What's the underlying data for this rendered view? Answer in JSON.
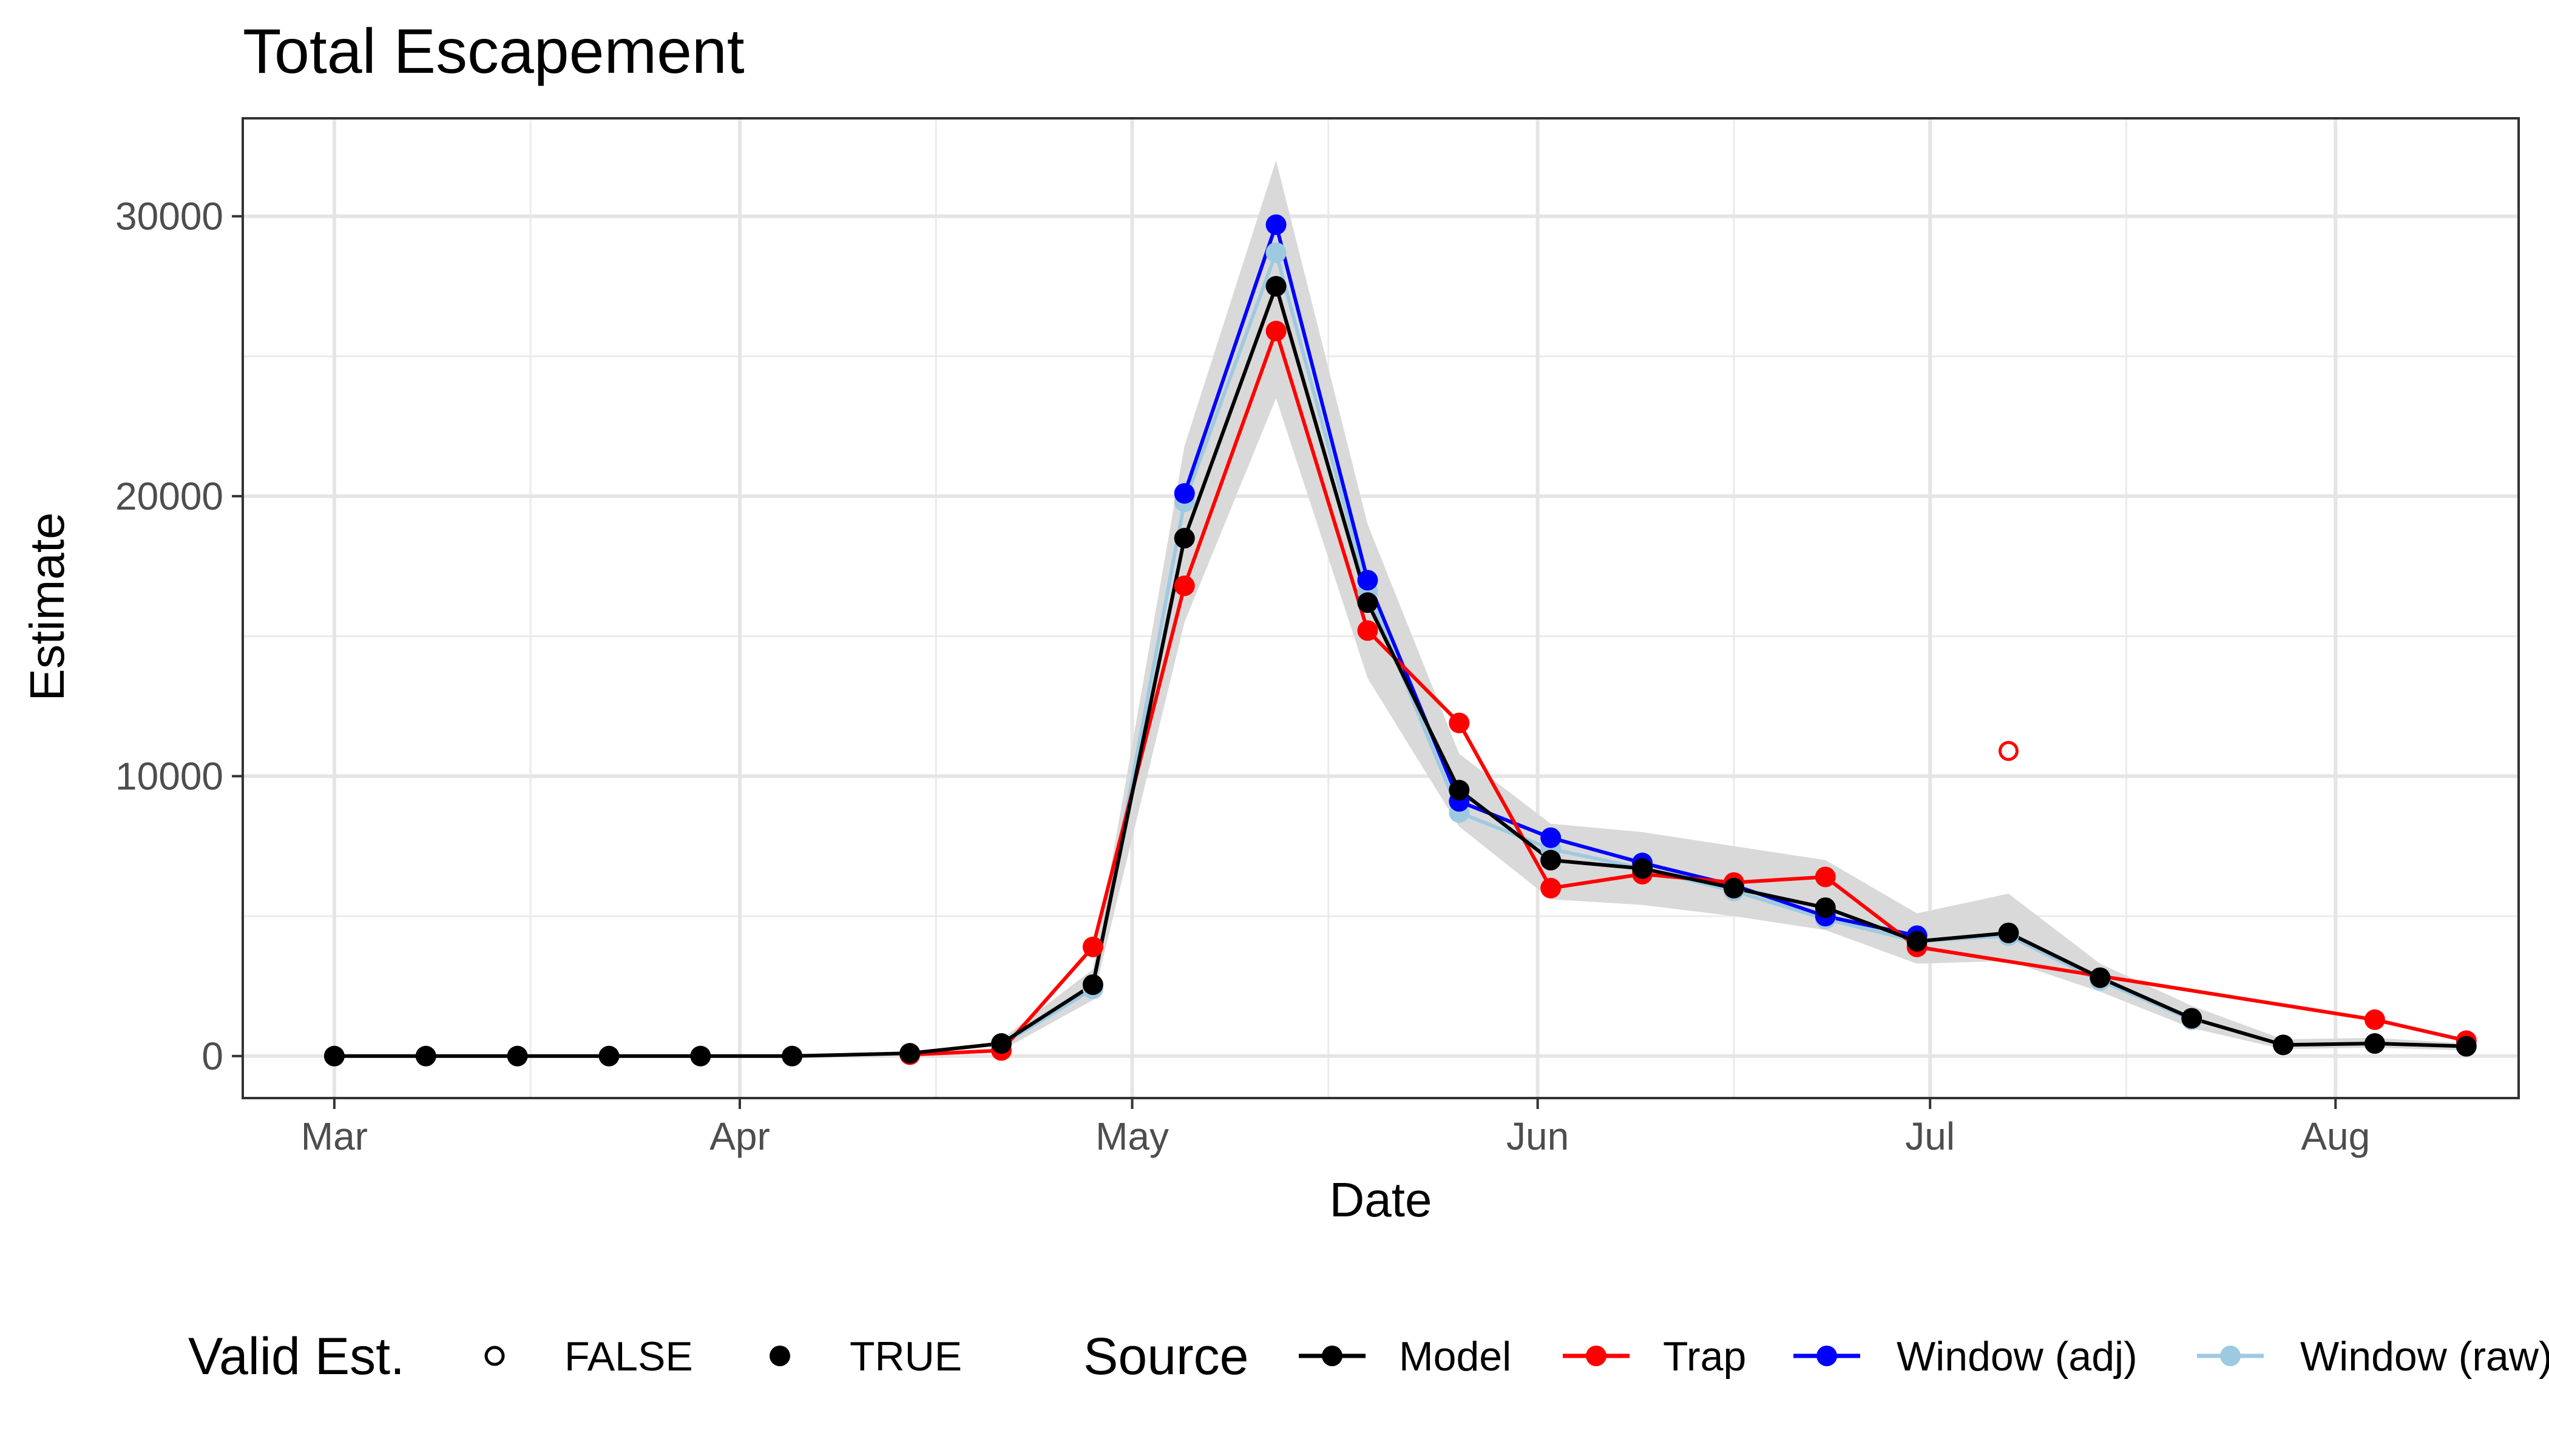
{
  "chart_data": {
    "type": "line",
    "title": "Total Escapement",
    "xlabel": "Date",
    "ylabel": "Estimate",
    "ylim": [
      -1500,
      33500
    ],
    "xlim": [
      "2022-02-22",
      "2022-08-15"
    ],
    "x_ticks": [
      {
        "date": "2022-03-01",
        "label": "Mar"
      },
      {
        "date": "2022-04-01",
        "label": "Apr"
      },
      {
        "date": "2022-05-01",
        "label": "May"
      },
      {
        "date": "2022-06-01",
        "label": "Jun"
      },
      {
        "date": "2022-07-01",
        "label": "Jul"
      },
      {
        "date": "2022-08-01",
        "label": "Aug"
      }
    ],
    "y_ticks": [
      0,
      10000,
      20000,
      30000
    ],
    "grid": true,
    "legend_position": "bottom",
    "confidence_band": {
      "x": [
        "2022-04-21",
        "2022-04-28",
        "2022-05-05",
        "2022-05-12",
        "2022-05-19",
        "2022-05-26",
        "2022-06-02",
        "2022-06-09",
        "2022-06-16",
        "2022-06-23",
        "2022-06-30",
        "2022-07-07",
        "2022-07-14",
        "2022-07-21",
        "2022-07-28",
        "2022-08-04",
        "2022-08-11"
      ],
      "lower": [
        200,
        2000,
        15500,
        23500,
        13500,
        8200,
        5600,
        5400,
        5000,
        4500,
        3300,
        3400,
        2300,
        1000,
        250,
        300,
        200
      ],
      "upper": [
        600,
        3100,
        21800,
        32000,
        19000,
        10800,
        8300,
        8000,
        7500,
        7000,
        5100,
        5800,
        3300,
        1800,
        600,
        650,
        450
      ],
      "color": "#d9d9d9"
    },
    "series": [
      {
        "name": "Model",
        "color": "#000000",
        "points": [
          {
            "x": "2022-03-01",
            "y": 0,
            "valid": true
          },
          {
            "x": "2022-03-08",
            "y": 0,
            "valid": true
          },
          {
            "x": "2022-03-15",
            "y": 0,
            "valid": true
          },
          {
            "x": "2022-03-22",
            "y": 0,
            "valid": true
          },
          {
            "x": "2022-03-29",
            "y": 0,
            "valid": true
          },
          {
            "x": "2022-04-05",
            "y": 0,
            "valid": true
          },
          {
            "x": "2022-04-14",
            "y": 100,
            "valid": true
          },
          {
            "x": "2022-04-21",
            "y": 450,
            "valid": true
          },
          {
            "x": "2022-04-28",
            "y": 2550,
            "valid": true
          },
          {
            "x": "2022-05-05",
            "y": 18500,
            "valid": true
          },
          {
            "x": "2022-05-12",
            "y": 27500,
            "valid": true
          },
          {
            "x": "2022-05-19",
            "y": 16200,
            "valid": true
          },
          {
            "x": "2022-05-26",
            "y": 9500,
            "valid": true
          },
          {
            "x": "2022-06-02",
            "y": 7000,
            "valid": true
          },
          {
            "x": "2022-06-09",
            "y": 6700,
            "valid": true
          },
          {
            "x": "2022-06-16",
            "y": 6000,
            "valid": true
          },
          {
            "x": "2022-06-23",
            "y": 5300,
            "valid": true
          },
          {
            "x": "2022-06-30",
            "y": 4100,
            "valid": true
          },
          {
            "x": "2022-07-07",
            "y": 4400,
            "valid": true
          },
          {
            "x": "2022-07-14",
            "y": 2800,
            "valid": true
          },
          {
            "x": "2022-07-21",
            "y": 1350,
            "valid": true
          },
          {
            "x": "2022-07-28",
            "y": 400,
            "valid": true
          },
          {
            "x": "2022-08-04",
            "y": 450,
            "valid": true
          },
          {
            "x": "2022-08-11",
            "y": 350,
            "valid": true
          }
        ]
      },
      {
        "name": "Trap",
        "color": "#ff0000",
        "points": [
          {
            "x": "2022-04-14",
            "y": 50,
            "valid": true
          },
          {
            "x": "2022-04-21",
            "y": 200,
            "valid": true
          },
          {
            "x": "2022-04-28",
            "y": 3900,
            "valid": true
          },
          {
            "x": "2022-05-05",
            "y": 16800,
            "valid": true
          },
          {
            "x": "2022-05-12",
            "y": 25900,
            "valid": true
          },
          {
            "x": "2022-05-19",
            "y": 15200,
            "valid": true
          },
          {
            "x": "2022-05-26",
            "y": 11900,
            "valid": true
          },
          {
            "x": "2022-06-02",
            "y": 6000,
            "valid": true
          },
          {
            "x": "2022-06-09",
            "y": 6500,
            "valid": true
          },
          {
            "x": "2022-06-16",
            "y": 6200,
            "valid": true
          },
          {
            "x": "2022-06-23",
            "y": 6400,
            "valid": true
          },
          {
            "x": "2022-06-30",
            "y": 3900,
            "valid": true
          },
          {
            "x": "2022-07-07",
            "y": 10900,
            "valid": false
          },
          {
            "x": "2022-08-04",
            "y": 1300,
            "valid": true
          },
          {
            "x": "2022-08-11",
            "y": 550,
            "valid": true
          }
        ]
      },
      {
        "name": "Window (adj)",
        "color": "#0000ff",
        "points": [
          {
            "x": "2022-05-05",
            "y": 20100,
            "valid": true
          },
          {
            "x": "2022-05-12",
            "y": 29700,
            "valid": true
          },
          {
            "x": "2022-05-19",
            "y": 17000,
            "valid": true
          },
          {
            "x": "2022-05-26",
            "y": 9100,
            "valid": true
          },
          {
            "x": "2022-06-02",
            "y": 7800,
            "valid": true
          },
          {
            "x": "2022-06-09",
            "y": 6900,
            "valid": true
          },
          {
            "x": "2022-06-16",
            "y": 6100,
            "valid": true
          },
          {
            "x": "2022-06-23",
            "y": 5000,
            "valid": true
          },
          {
            "x": "2022-06-30",
            "y": 4300,
            "valid": true
          }
        ]
      },
      {
        "name": "Window (raw)",
        "color": "#9ecae1",
        "points": [
          {
            "x": "2022-04-21",
            "y": 400,
            "valid": true
          },
          {
            "x": "2022-04-28",
            "y": 2400,
            "valid": true
          },
          {
            "x": "2022-05-05",
            "y": 19800,
            "valid": true
          },
          {
            "x": "2022-05-12",
            "y": 28700,
            "valid": true
          },
          {
            "x": "2022-05-19",
            "y": 16600,
            "valid": true
          },
          {
            "x": "2022-05-26",
            "y": 8700,
            "valid": true
          },
          {
            "x": "2022-06-02",
            "y": 7400,
            "valid": true
          },
          {
            "x": "2022-06-09",
            "y": 6700,
            "valid": true
          },
          {
            "x": "2022-06-16",
            "y": 5900,
            "valid": true
          },
          {
            "x": "2022-06-23",
            "y": 4900,
            "valid": true
          },
          {
            "x": "2022-06-30",
            "y": 4100,
            "valid": true
          },
          {
            "x": "2022-07-07",
            "y": 4300,
            "valid": true
          },
          {
            "x": "2022-07-14",
            "y": 2700,
            "valid": true
          },
          {
            "x": "2022-07-21",
            "y": 1300,
            "valid": true
          }
        ]
      }
    ],
    "legend": {
      "valid_title": "Valid Est.",
      "valid_items": [
        "FALSE",
        "TRUE"
      ],
      "source_title": "Source",
      "source_items": [
        "Model",
        "Trap",
        "Window (adj)",
        "Window (raw)"
      ]
    }
  }
}
